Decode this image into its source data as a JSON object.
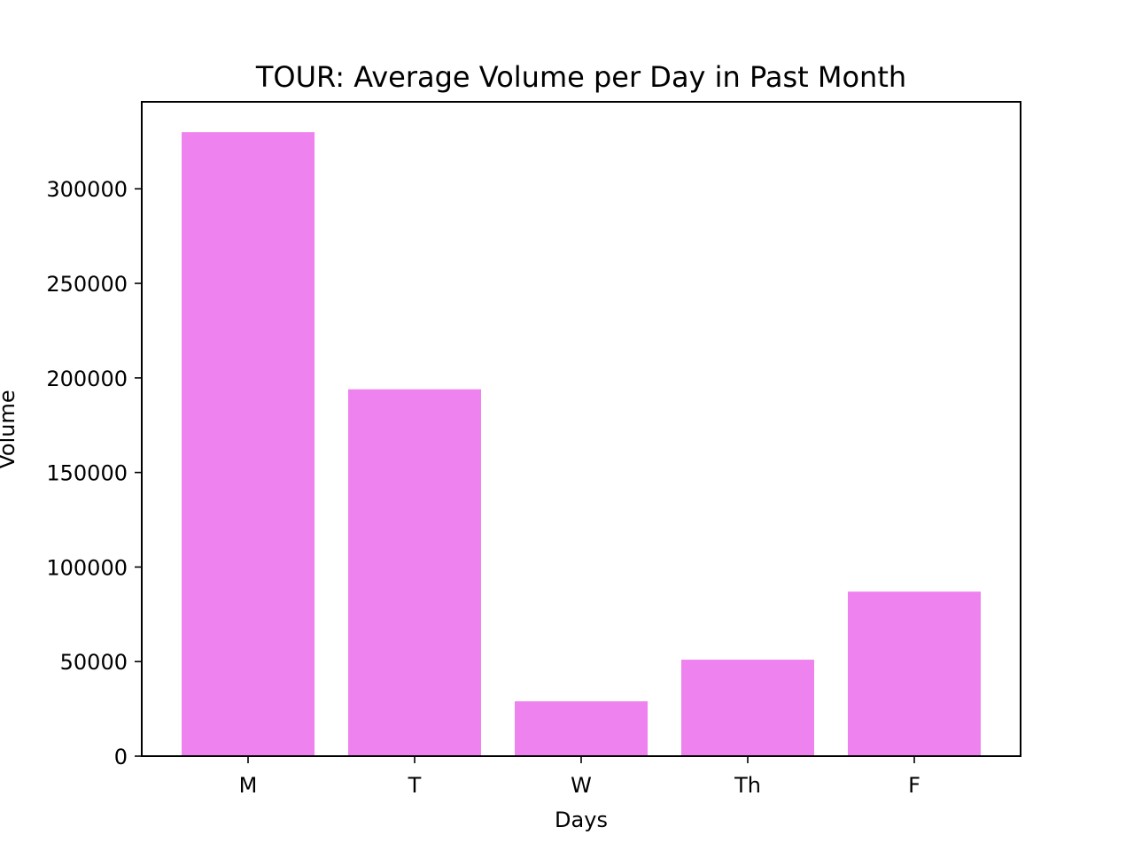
{
  "chart_data": {
    "type": "bar",
    "title": "TOUR: Average Volume per Day in Past Month",
    "xlabel": "Days",
    "ylabel": "Volume",
    "categories": [
      "M",
      "T",
      "W",
      "Th",
      "F"
    ],
    "values": [
      330000,
      194000,
      29000,
      51000,
      87000
    ],
    "ylim": [
      0,
      346000
    ],
    "yticks": [
      0,
      50000,
      100000,
      150000,
      200000,
      250000,
      300000
    ],
    "bar_color": "#ee82ee",
    "grid": false,
    "legend": "none"
  }
}
